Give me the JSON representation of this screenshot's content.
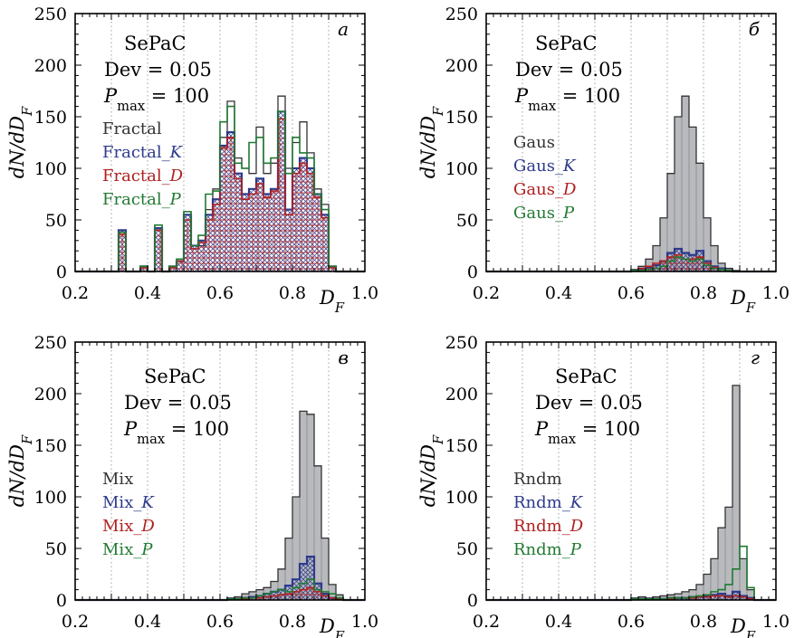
{
  "colors": {
    "total": "#333333",
    "total_fill": "#b8babe",
    "k": "#2e3a8c",
    "d": "#b02020",
    "p": "#217a33",
    "grid": "#888888",
    "axis": "#000000"
  },
  "chart_data": [
    {
      "type": "histogram",
      "panel_label": "а",
      "xlim": [
        0.2,
        1.0
      ],
      "ylim": [
        0,
        250
      ],
      "xticks": [
        "0.2",
        "0.4",
        "0.6",
        "0.8",
        "1.0"
      ],
      "yticks": [
        "0",
        "50",
        "100",
        "150",
        "200",
        "250"
      ],
      "xlabel": "D_F",
      "ylabel": "dN/dD_F",
      "annotations": {
        "method": "SePaC",
        "dev": "Dev = 0.05",
        "pmax": "P_max = 100"
      },
      "filled_total": false,
      "bin_edges": [
        0.32,
        0.34,
        0.36,
        0.38,
        0.4,
        0.42,
        0.44,
        0.46,
        0.48,
        0.5,
        0.52,
        0.54,
        0.56,
        0.58,
        0.6,
        0.62,
        0.64,
        0.66,
        0.68,
        0.7,
        0.72,
        0.74,
        0.76,
        0.78,
        0.8,
        0.82,
        0.84,
        0.86,
        0.88,
        0.9,
        0.92
      ],
      "series": [
        {
          "name": "Fractal",
          "values": [
            38,
            0,
            0,
            5,
            0,
            45,
            0,
            5,
            12,
            58,
            25,
            25,
            60,
            80,
            130,
            165,
            110,
            100,
            95,
            140,
            95,
            105,
            170,
            100,
            125,
            145,
            115,
            80,
            65,
            5
          ]
        },
        {
          "name": "Fractal_K",
          "values": [
            40,
            0,
            0,
            5,
            0,
            42,
            0,
            5,
            10,
            55,
            25,
            30,
            55,
            70,
            122,
            135,
            95,
            75,
            80,
            90,
            75,
            80,
            155,
            60,
            100,
            110,
            100,
            75,
            55,
            5
          ]
        },
        {
          "name": "Fractal_D",
          "values": [
            36,
            0,
            0,
            4,
            0,
            40,
            0,
            4,
            10,
            50,
            22,
            28,
            50,
            65,
            120,
            130,
            90,
            70,
            75,
            85,
            72,
            78,
            148,
            55,
            95,
            105,
            95,
            72,
            52,
            4
          ]
        },
        {
          "name": "Fractal_P",
          "values": [
            38,
            0,
            0,
            5,
            0,
            45,
            0,
            5,
            12,
            58,
            25,
            35,
            75,
            78,
            145,
            160,
            105,
            100,
            125,
            130,
            105,
            110,
            155,
            95,
            130,
            115,
            110,
            75,
            60,
            5
          ]
        }
      ]
    },
    {
      "type": "histogram",
      "panel_label": "б",
      "xlim": [
        0.2,
        1.0
      ],
      "ylim": [
        0,
        250
      ],
      "xticks": [
        "0.2",
        "0.4",
        "0.6",
        "0.8",
        "1.0"
      ],
      "yticks": [
        "0",
        "50",
        "100",
        "150",
        "200",
        "250"
      ],
      "xlabel": "D_F",
      "ylabel": "dN/dD_F",
      "annotations": {
        "method": "SePaC",
        "dev": "Dev = 0.05",
        "pmax": "P_max = 100"
      },
      "filled_total": true,
      "bin_edges": [
        0.6,
        0.62,
        0.64,
        0.66,
        0.68,
        0.7,
        0.72,
        0.74,
        0.76,
        0.78,
        0.8,
        0.82,
        0.84,
        0.86,
        0.88,
        0.9
      ],
      "series": [
        {
          "name": "Gaus",
          "values": [
            2,
            5,
            12,
            25,
            52,
            95,
            150,
            170,
            140,
            105,
            52,
            25,
            8,
            3,
            1
          ]
        },
        {
          "name": "Gaus_K",
          "values": [
            1,
            2,
            4,
            6,
            10,
            18,
            22,
            18,
            16,
            20,
            10,
            5,
            3,
            1,
            0
          ]
        },
        {
          "name": "Gaus_D",
          "values": [
            1,
            3,
            5,
            8,
            10,
            14,
            16,
            12,
            12,
            14,
            8,
            4,
            2,
            1,
            0
          ]
        },
        {
          "name": "Gaus_P",
          "values": [
            1,
            1,
            2,
            3,
            5,
            10,
            14,
            12,
            10,
            12,
            6,
            3,
            2,
            1,
            0
          ]
        }
      ]
    },
    {
      "type": "histogram",
      "panel_label": "в",
      "xlim": [
        0.2,
        1.0
      ],
      "ylim": [
        0,
        250
      ],
      "xticks": [
        "0.2",
        "0.4",
        "0.6",
        "0.8",
        "1.0"
      ],
      "yticks": [
        "0",
        "50",
        "100",
        "150",
        "200",
        "250"
      ],
      "xlabel": "D_F",
      "ylabel": "dN/dD_F",
      "annotations": {
        "method": "SePaC",
        "dev": "Dev = 0.05",
        "pmax": "P_max = 100"
      },
      "filled_total": true,
      "bin_edges": [
        0.62,
        0.64,
        0.66,
        0.68,
        0.7,
        0.72,
        0.74,
        0.76,
        0.78,
        0.8,
        0.82,
        0.84,
        0.86,
        0.88,
        0.9,
        0.92,
        0.94
      ],
      "series": [
        {
          "name": "Mix",
          "values": [
            2,
            3,
            6,
            8,
            10,
            12,
            18,
            30,
            60,
            100,
            183,
            180,
            130,
            60,
            15,
            5
          ]
        },
        {
          "name": "Mix_K",
          "values": [
            1,
            1,
            2,
            3,
            4,
            6,
            8,
            10,
            14,
            20,
            35,
            42,
            16,
            6,
            2,
            1
          ]
        },
        {
          "name": "Mix_D",
          "values": [
            1,
            1,
            1,
            2,
            2,
            3,
            4,
            5,
            6,
            8,
            10,
            12,
            8,
            4,
            2,
            1
          ]
        },
        {
          "name": "Mix_P",
          "values": [
            1,
            1,
            2,
            2,
            4,
            6,
            8,
            10,
            8,
            12,
            16,
            20,
            10,
            8,
            6,
            2
          ]
        }
      ]
    },
    {
      "type": "histogram",
      "panel_label": "г",
      "xlim": [
        0.2,
        1.0
      ],
      "ylim": [
        0,
        250
      ],
      "xticks": [
        "0.2",
        "0.4",
        "0.6",
        "0.8",
        "1.0"
      ],
      "yticks": [
        "0",
        "50",
        "100",
        "150",
        "200",
        "250"
      ],
      "xlabel": "D_F",
      "ylabel": "dN/dD_F",
      "annotations": {
        "method": "SePaC",
        "dev": "Dev = 0.05",
        "pmax": "P_max = 100"
      },
      "filled_total": true,
      "bin_edges": [
        0.6,
        0.62,
        0.64,
        0.66,
        0.68,
        0.7,
        0.72,
        0.74,
        0.76,
        0.78,
        0.8,
        0.82,
        0.84,
        0.86,
        0.88,
        0.9,
        0.92,
        0.94
      ],
      "series": [
        {
          "name": "Rndm",
          "values": [
            2,
            3,
            2,
            3,
            4,
            5,
            6,
            8,
            10,
            15,
            25,
            40,
            70,
            90,
            208,
            40,
            10
          ]
        },
        {
          "name": "Rndm_K",
          "values": [
            1,
            1,
            1,
            1,
            1,
            2,
            2,
            2,
            3,
            3,
            4,
            5,
            6,
            4,
            8,
            4,
            2
          ]
        },
        {
          "name": "Rndm_D",
          "values": [
            1,
            1,
            1,
            1,
            1,
            1,
            2,
            2,
            2,
            3,
            3,
            4,
            4,
            3,
            4,
            3,
            1
          ]
        },
        {
          "name": "Rndm_P",
          "values": [
            1,
            1,
            1,
            1,
            1,
            2,
            2,
            2,
            3,
            4,
            5,
            8,
            10,
            15,
            30,
            52,
            12
          ]
        }
      ]
    }
  ]
}
